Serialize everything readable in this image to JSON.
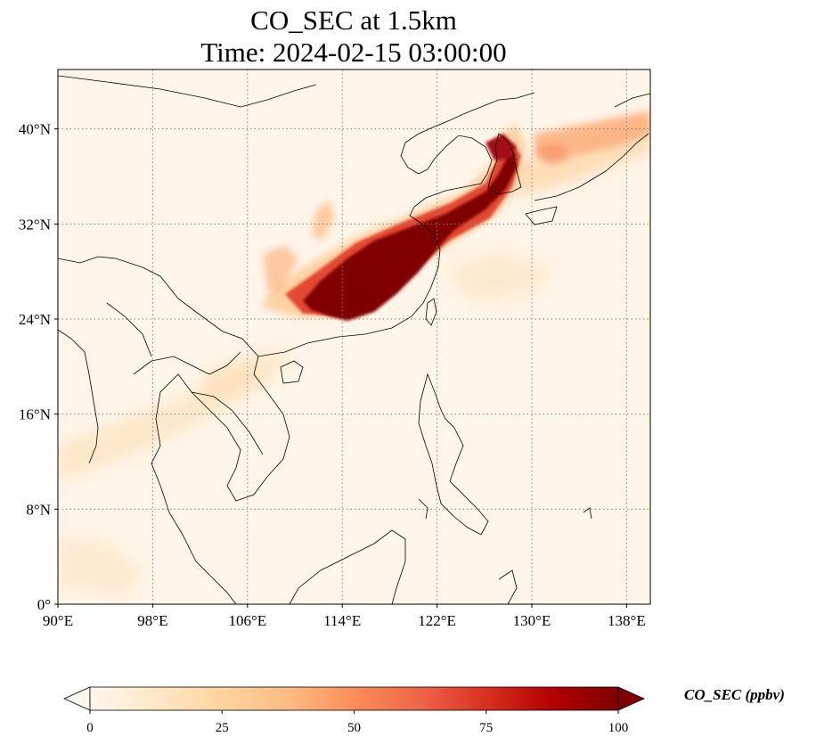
{
  "map": {
    "title_line1": "CO_SEC at 1.5km",
    "title_line2": "Time: 2024-02-15 03:00:00",
    "extent": {
      "lon_min": 90,
      "lon_max": 140,
      "lat_min": 0,
      "lat_max": 45
    },
    "lon_ticks": [
      {
        "value": 90,
        "label": "90°E"
      },
      {
        "value": 98,
        "label": "98°E"
      },
      {
        "value": 106,
        "label": "106°E"
      },
      {
        "value": 114,
        "label": "114°E"
      },
      {
        "value": 122,
        "label": "122°E"
      },
      {
        "value": 130,
        "label": "130°E"
      },
      {
        "value": 138,
        "label": "138°E"
      }
    ],
    "lat_ticks": [
      {
        "value": 0,
        "label": "0°"
      },
      {
        "value": 8,
        "label": "8°N"
      },
      {
        "value": 16,
        "label": "16°N"
      },
      {
        "value": 24,
        "label": "24°N"
      },
      {
        "value": 32,
        "label": "32°N"
      },
      {
        "value": 40,
        "label": "40°N"
      }
    ],
    "gridlines": "dotted grey"
  },
  "colorbar": {
    "label": "CO_SEC (ppbv)",
    "min": 0,
    "max": 100,
    "extend": "both",
    "colormap": "OrRd",
    "ticks": [
      {
        "value": 0,
        "label": "0"
      },
      {
        "value": 25,
        "label": "25"
      },
      {
        "value": 50,
        "label": "50"
      },
      {
        "value": 75,
        "label": "75"
      },
      {
        "value": 100,
        "label": "100"
      }
    ]
  },
  "colors": {
    "background": "#fff5e8",
    "plume_light": "#fdd49e",
    "plume_mid": "#ef6548",
    "plume_dark": "#7f0000",
    "coastline": "#000000",
    "grid": "#808080"
  }
}
